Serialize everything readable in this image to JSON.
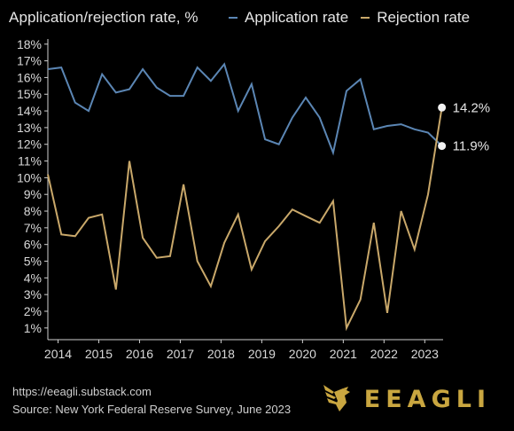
{
  "header": {
    "title": "Application/rejection rate, %"
  },
  "footer": {
    "url": "https://eeagli.substack.com",
    "source": "Source: New York Federal Reserve Survey, June 2023"
  },
  "brand": {
    "name": "EEAGLI",
    "logo_icon": "eagle-logo-icon",
    "color": "#c9a640"
  },
  "chart_data": {
    "type": "line",
    "title": "Application/rejection rate, %",
    "xlabel": "",
    "ylabel": "",
    "xlim": [
      2013.75,
      2023.45
    ],
    "ylim": [
      0.3,
      18.2
    ],
    "grid": false,
    "legend_position": "top",
    "x_ticks": [
      "2014",
      "2015",
      "2016",
      "2017",
      "2018",
      "2019",
      "2020",
      "2021",
      "2022",
      "2023"
    ],
    "y_ticks": [
      "1%",
      "2%",
      "3%",
      "4%",
      "5%",
      "6%",
      "7%",
      "8%",
      "9%",
      "10%",
      "11%",
      "12%",
      "13%",
      "14%",
      "15%",
      "16%",
      "17%",
      "18%"
    ],
    "x": [
      2013.75,
      2014.08,
      2014.42,
      2014.75,
      2015.08,
      2015.42,
      2015.75,
      2016.08,
      2016.42,
      2016.75,
      2017.08,
      2017.42,
      2017.75,
      2018.08,
      2018.42,
      2018.75,
      2019.08,
      2019.42,
      2019.75,
      2020.08,
      2020.42,
      2020.75,
      2021.08,
      2021.42,
      2021.75,
      2022.08,
      2022.42,
      2022.75,
      2023.08,
      2023.42
    ],
    "series": [
      {
        "name": "Application rate",
        "color": "#5b86b4",
        "end_label": "11.9%",
        "values": [
          16.5,
          16.6,
          14.5,
          14.0,
          16.2,
          15.1,
          15.3,
          16.5,
          15.4,
          14.9,
          14.9,
          16.6,
          15.8,
          16.8,
          14.0,
          15.6,
          12.3,
          12.0,
          13.6,
          14.8,
          13.6,
          11.5,
          15.2,
          15.9,
          12.9,
          13.1,
          13.2,
          12.9,
          12.7,
          11.9
        ]
      },
      {
        "name": "Rejection rate",
        "color": "#c9a86a",
        "end_label": "14.2%",
        "values": [
          10.2,
          6.6,
          6.5,
          7.6,
          7.8,
          3.3,
          11.0,
          6.4,
          5.2,
          5.3,
          9.6,
          5.0,
          3.5,
          6.1,
          7.8,
          4.5,
          6.2,
          7.1,
          8.1,
          7.7,
          7.3,
          8.6,
          1.0,
          2.7,
          7.3,
          1.9,
          8.0,
          5.7,
          9.0,
          14.2
        ]
      }
    ]
  }
}
